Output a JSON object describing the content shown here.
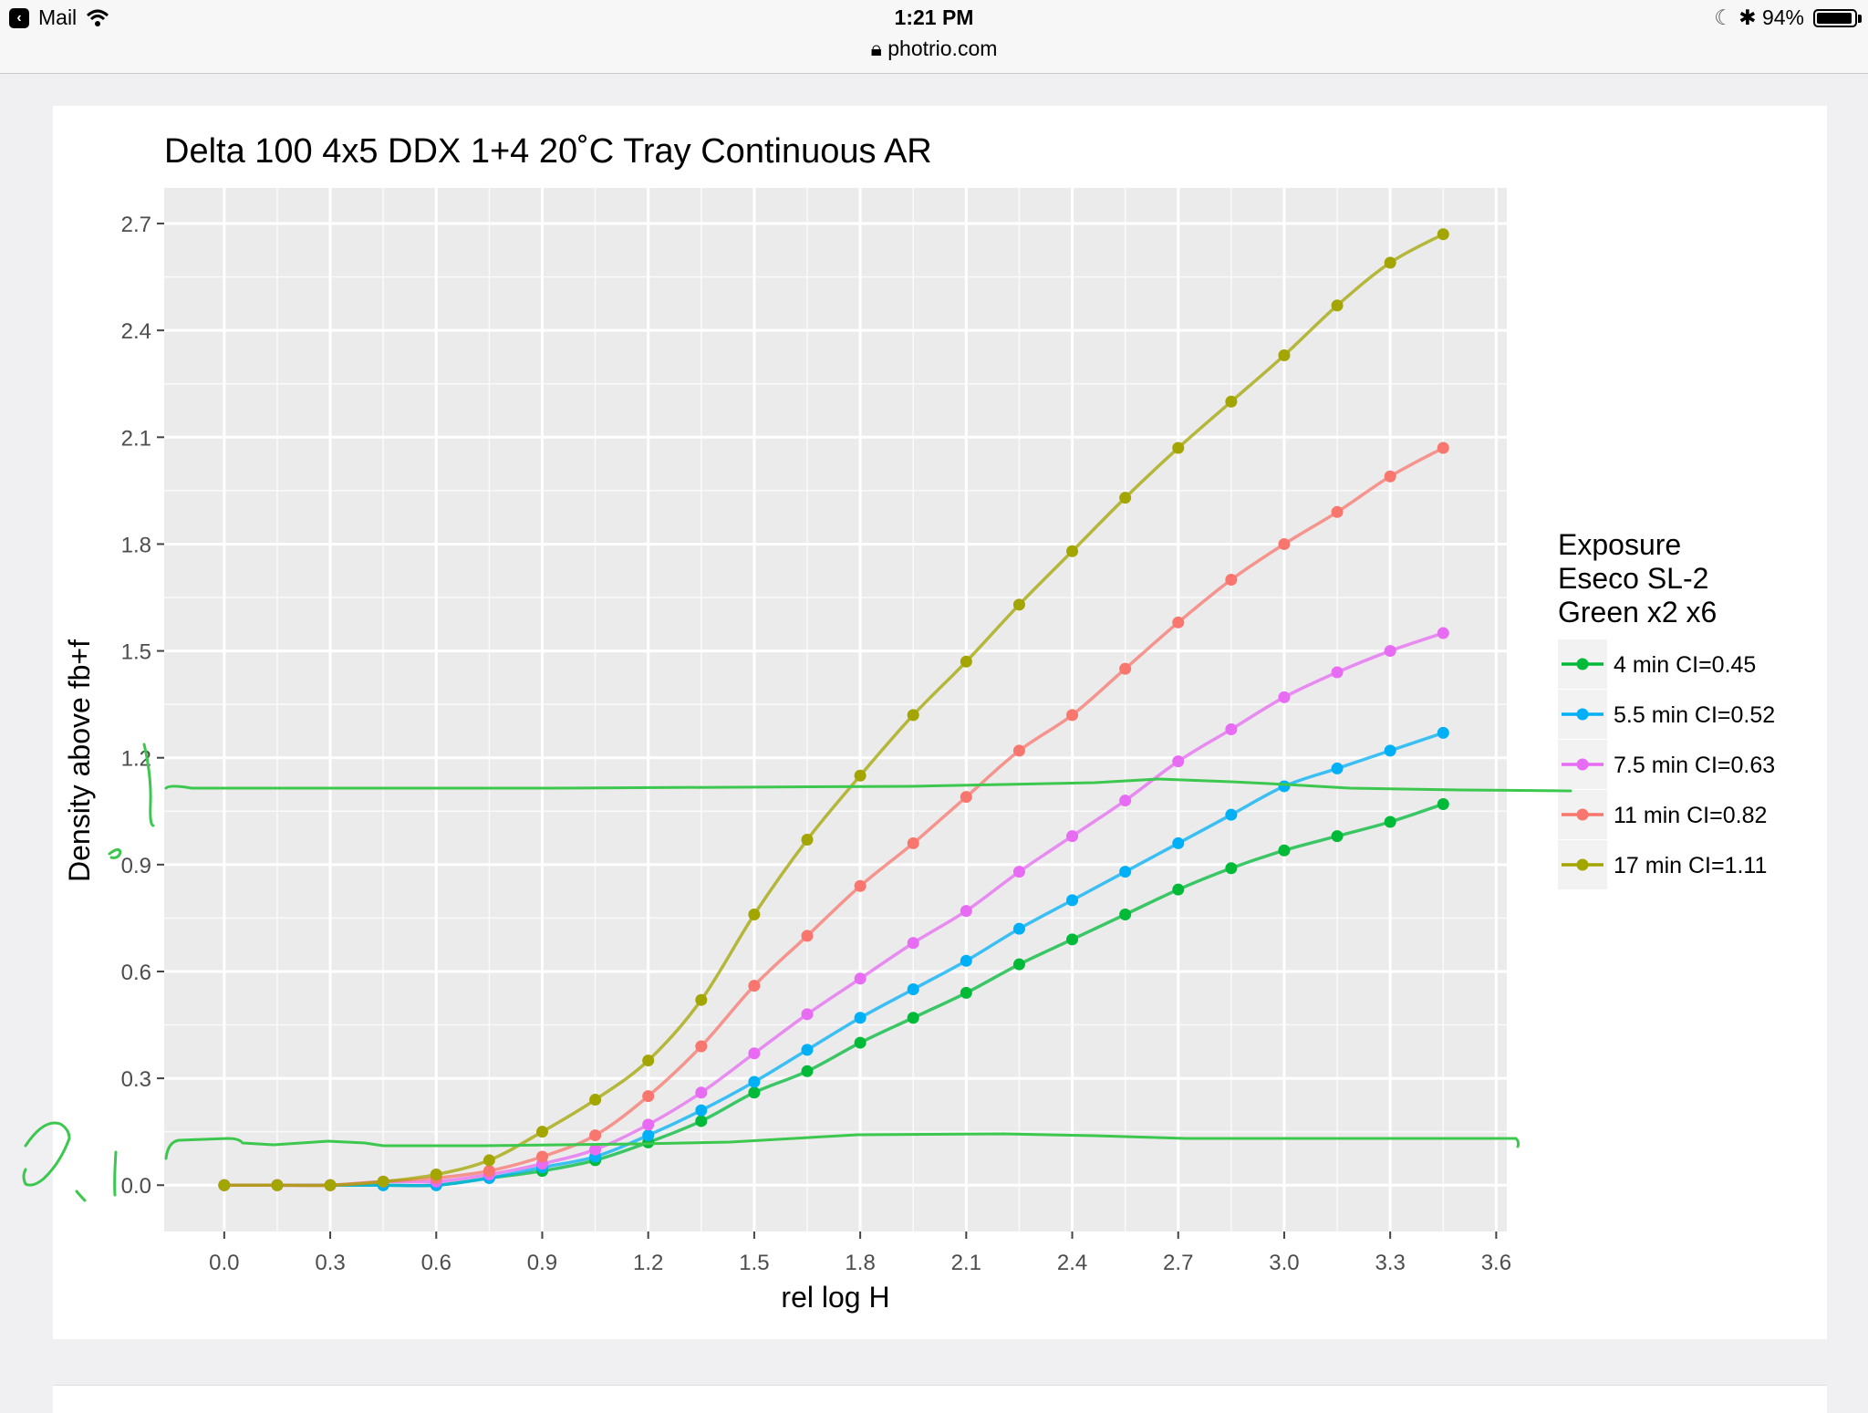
{
  "status_bar": {
    "back_app": "Mail",
    "time": "1:21 PM",
    "url": "photrio.com",
    "battery": "94%",
    "battery_level": 0.94
  },
  "chart_data": {
    "type": "scatter",
    "title": "Delta 100 4x5 DDX 1+4 20˚C Tray Continuous AR",
    "xlabel": "rel log H",
    "ylabel": "Density above fb+f",
    "xlim": [
      -0.17,
      3.63
    ],
    "ylim": [
      -0.13,
      2.8
    ],
    "x_ticks": [
      "0.0",
      "0.3",
      "0.6",
      "0.9",
      "1.2",
      "1.5",
      "1.8",
      "2.1",
      "2.4",
      "2.7",
      "3.0",
      "3.3",
      "3.6"
    ],
    "y_ticks": [
      "0.0",
      "0.3",
      "0.6",
      "0.9",
      "1.2",
      "1.5",
      "1.8",
      "2.1",
      "2.4",
      "2.7"
    ],
    "grid": true,
    "background": "#ebebeb",
    "legend_position": "right",
    "legend_title": [
      "Exposure",
      "Eseco SL-2",
      "Green x2 x6"
    ],
    "x": [
      0.0,
      0.15,
      0.3,
      0.45,
      0.6,
      0.75,
      0.9,
      1.05,
      1.2,
      1.35,
      1.5,
      1.65,
      1.8,
      1.95,
      2.1,
      2.25,
      2.4,
      2.55,
      2.7,
      2.85,
      3.0,
      3.15,
      3.3,
      3.45
    ],
    "series": [
      {
        "name": "4 min CI=0.45",
        "color": "#00ba38",
        "values": [
          0.0,
          0.0,
          0.0,
          0.0,
          0.0,
          0.02,
          0.04,
          0.07,
          0.12,
          0.18,
          0.26,
          0.32,
          0.4,
          0.47,
          0.54,
          0.62,
          0.69,
          0.76,
          0.83,
          0.89,
          0.94,
          0.98,
          1.02,
          1.07
        ]
      },
      {
        "name": "5.5 min CI=0.52",
        "color": "#00b0f6",
        "values": [
          0.0,
          0.0,
          0.0,
          0.0,
          0.0,
          0.02,
          0.05,
          0.08,
          0.14,
          0.21,
          0.29,
          0.38,
          0.47,
          0.55,
          0.63,
          0.72,
          0.8,
          0.88,
          0.96,
          1.04,
          1.12,
          1.17,
          1.22,
          1.27
        ]
      },
      {
        "name": "7.5 min CI=0.63",
        "color": "#e76bf3",
        "values": [
          0.0,
          0.0,
          0.0,
          0.01,
          0.01,
          0.03,
          0.06,
          0.1,
          0.17,
          0.26,
          0.37,
          0.48,
          0.58,
          0.68,
          0.77,
          0.88,
          0.98,
          1.08,
          1.19,
          1.28,
          1.37,
          1.44,
          1.5,
          1.55
        ]
      },
      {
        "name": "11 min CI=0.82",
        "color": "#f8766d",
        "values": [
          0.0,
          0.0,
          0.0,
          0.01,
          0.02,
          0.04,
          0.08,
          0.14,
          0.25,
          0.39,
          0.56,
          0.7,
          0.84,
          0.96,
          1.09,
          1.22,
          1.32,
          1.45,
          1.58,
          1.7,
          1.8,
          1.89,
          1.99,
          2.07
        ]
      },
      {
        "name": "17 min CI=1.11",
        "color": "#a3a500",
        "values": [
          0.0,
          0.0,
          0.0,
          0.01,
          0.03,
          0.07,
          0.15,
          0.24,
          0.35,
          0.52,
          0.76,
          0.97,
          1.15,
          1.32,
          1.47,
          1.63,
          1.78,
          1.93,
          2.07,
          2.2,
          2.33,
          2.47,
          2.59,
          2.67
        ]
      }
    ]
  }
}
